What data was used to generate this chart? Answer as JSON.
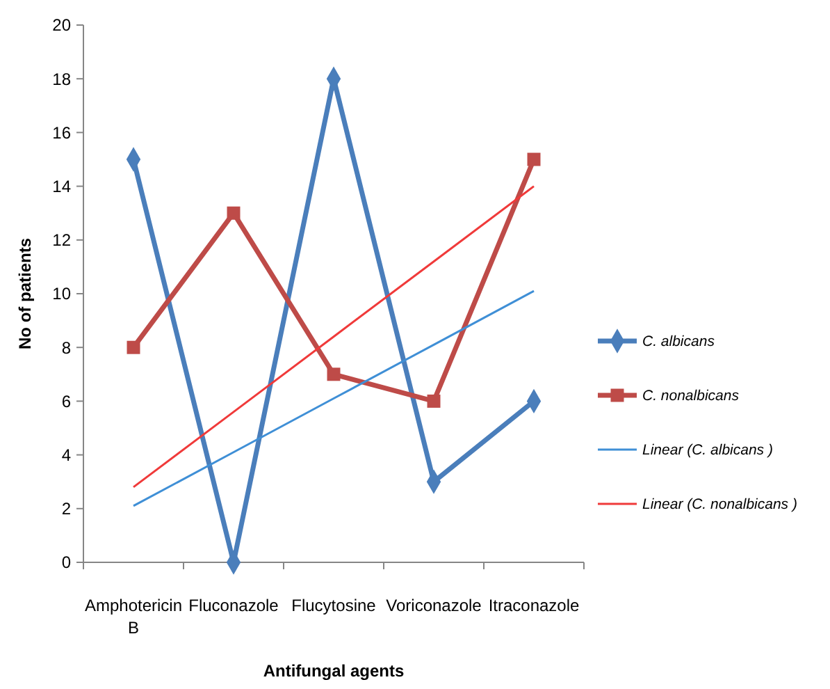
{
  "chart_data": {
    "type": "line",
    "xlabel": "Antifungal agents",
    "ylabel": "No of patients",
    "categories": [
      "Amphotericin B",
      "Fluconazole",
      "Flucytosine",
      "Voriconazole",
      "Itraconazole"
    ],
    "ylim": [
      0,
      20
    ],
    "yticks": [
      0,
      2,
      4,
      6,
      8,
      10,
      12,
      14,
      16,
      18,
      20
    ],
    "grid": false,
    "legend": "right",
    "series": [
      {
        "name": "C. albicans",
        "color": "#4a7ebb",
        "values": [
          15,
          0,
          18,
          3,
          6
        ],
        "marker": "diamond"
      },
      {
        "name": "C. nonalbicans",
        "color": "#be4b48",
        "values": [
          8,
          13,
          7,
          6,
          15
        ],
        "marker": "square"
      },
      {
        "name": "Linear (C. albicans )",
        "color": "#3f8fd6",
        "values": [
          2.1,
          4.1,
          6.1,
          8.1,
          10.1
        ],
        "marker": "none"
      },
      {
        "name": "Linear (C. nonalbicans )",
        "color": "#f03a3a",
        "values": [
          2.8,
          5.6,
          8.4,
          11.2,
          14
        ],
        "marker": "none"
      }
    ]
  }
}
